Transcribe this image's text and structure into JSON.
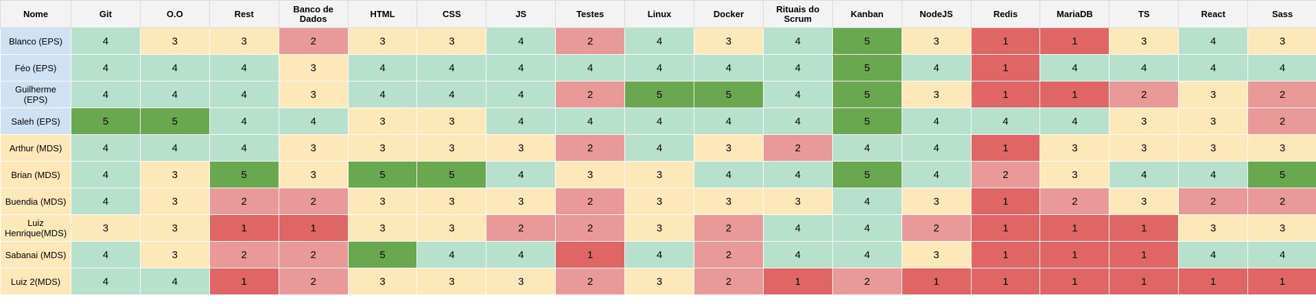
{
  "headers": [
    "Nome",
    "Git",
    "O.O",
    "Rest",
    "Banco de Dados",
    "HTML",
    "CSS",
    "JS",
    "Testes",
    "Linux",
    "Docker",
    "Rituais do Scrum",
    "Kanban",
    "NodeJS",
    "Redis",
    "MariaDB",
    "TS",
    "React",
    "Sass"
  ],
  "rows": [
    {
      "name": "Blanco (EPS)",
      "scores": [
        "4",
        "3",
        "3",
        "2",
        "3",
        "3",
        "4",
        "2",
        "4",
        "3",
        "4",
        "5",
        "3",
        "1",
        "1",
        "3",
        "4",
        "3"
      ]
    },
    {
      "name": "Féo (EPS)",
      "scores": [
        "4",
        "4",
        "4",
        "3",
        "4",
        "4",
        "4",
        "4",
        "4",
        "4",
        "4",
        "5",
        "4",
        "1",
        "4",
        "4",
        "4",
        "4"
      ]
    },
    {
      "name": "Guilherme (EPS)",
      "scores": [
        "4",
        "4",
        "4",
        "3",
        "4",
        "4",
        "4",
        "2",
        "5",
        "5",
        "4",
        "5",
        "3",
        "1",
        "1",
        "2",
        "3",
        "2"
      ]
    },
    {
      "name": "Saleh (EPS)",
      "scores": [
        "5",
        "5",
        "4",
        "4",
        "3",
        "3",
        "4",
        "4",
        "4",
        "4",
        "4",
        "5",
        "4",
        "4",
        "4",
        "3",
        "3",
        "2"
      ]
    },
    {
      "name": "Arthur (MDS)",
      "scores": [
        "4",
        "4",
        "4",
        "3",
        "3",
        "3",
        "3",
        "2",
        "4",
        "3",
        "2",
        "4",
        "4",
        "1",
        "3",
        "3",
        "3",
        "3"
      ]
    },
    {
      "name": "Brian (MDS)",
      "scores": [
        "4",
        "3",
        "5",
        "3",
        "5",
        "5",
        "4",
        "3",
        "3",
        "4",
        "4",
        "5",
        "4",
        "2",
        "3",
        "4",
        "4",
        "5"
      ]
    },
    {
      "name": "Buendia (MDS)",
      "scores": [
        "4",
        "3",
        "2",
        "2",
        "3",
        "3",
        "3",
        "2",
        "3",
        "3",
        "3",
        "4",
        "3",
        "1",
        "2",
        "3",
        "2",
        "2"
      ]
    },
    {
      "name": "Luiz Henrique(MDS)",
      "scores": [
        "3",
        "3",
        "1",
        "1",
        "3",
        "3",
        "2",
        "2",
        "3",
        "2",
        "4",
        "4",
        "2",
        "1",
        "1",
        "1",
        "3",
        "3"
      ]
    },
    {
      "name": "Sabanai (MDS)",
      "scores": [
        "4",
        "3",
        "2",
        "2",
        "5",
        "4",
        "4",
        "1",
        "4",
        "2",
        "4",
        "4",
        "3",
        "1",
        "1",
        "1",
        "4",
        "4"
      ]
    },
    {
      "name": "Luiz 2(MDS)",
      "scores": [
        "4",
        "4",
        "1",
        "2",
        "3",
        "3",
        "3",
        "2",
        "3",
        "2",
        "1",
        "2",
        "1",
        "1",
        "1",
        "1",
        "1",
        "1"
      ]
    }
  ],
  "colors": {
    "score_1": "#e06666",
    "score_2": "#ea9999",
    "score_3": "#fde8b9",
    "score_4": "#b7e1cd",
    "score_5": "#6aa84f",
    "eps_name_bg": "#cfe2f3",
    "mds_name_bg": "#fde8b9"
  },
  "name_highlight_rows": [
    0,
    1,
    2,
    3
  ]
}
